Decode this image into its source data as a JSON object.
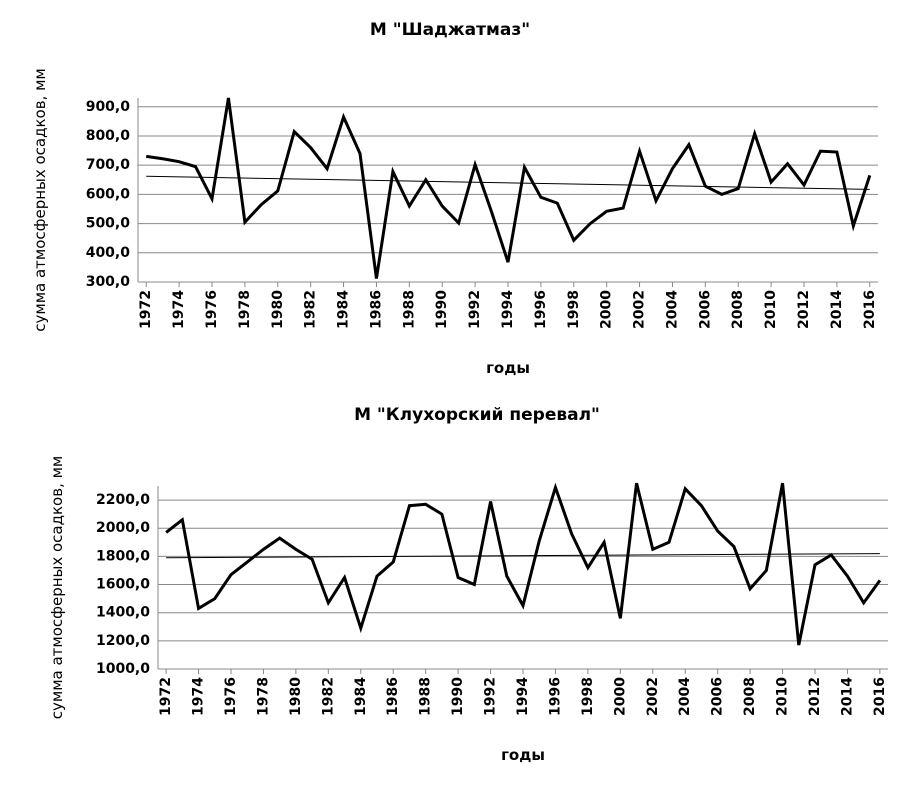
{
  "chart_data": [
    {
      "type": "line",
      "title": "М \"Шаджатмаз\"",
      "x_label": "годы",
      "y_label": "сумма атмосферных осадков, мм",
      "x": [
        1972,
        1973,
        1974,
        1975,
        1976,
        1977,
        1978,
        1979,
        1980,
        1981,
        1982,
        1983,
        1984,
        1985,
        1986,
        1987,
        1988,
        1989,
        1990,
        1991,
        1992,
        1993,
        1994,
        1995,
        1996,
        1997,
        1998,
        1999,
        2000,
        2001,
        2002,
        2003,
        2004,
        2005,
        2006,
        2007,
        2008,
        2009,
        2010,
        2011,
        2012,
        2013,
        2014,
        2015,
        2016
      ],
      "values": [
        730,
        722,
        712,
        695,
        585,
        930,
        505,
        565,
        612,
        815,
        760,
        688,
        865,
        740,
        312,
        678,
        560,
        650,
        560,
        502,
        702,
        540,
        368,
        693,
        590,
        570,
        443,
        500,
        542,
        553,
        748,
        578,
        688,
        770,
        628,
        600,
        620,
        808,
        642,
        705,
        632,
        748,
        745,
        492,
        665
      ],
      "color": "#000000",
      "trend": {
        "start": 662,
        "end": 617
      },
      "xlim": [
        1971.5,
        2016.5
      ],
      "xticks": [
        1972,
        1974,
        1976,
        1978,
        1980,
        1982,
        1984,
        1986,
        1988,
        1990,
        1992,
        1994,
        1996,
        1998,
        2000,
        2002,
        2004,
        2006,
        2008,
        2010,
        2012,
        2014,
        2016
      ],
      "ylim": [
        300,
        930
      ],
      "yticks": [
        {
          "value": 300,
          "label": "300,0"
        },
        {
          "value": 400,
          "label": "400,0"
        },
        {
          "value": 500,
          "label": "500,0"
        },
        {
          "value": 600,
          "label": "600,0"
        },
        {
          "value": 700,
          "label": "700,0"
        },
        {
          "value": 800,
          "label": "800,0"
        },
        {
          "value": 900,
          "label": "900,0"
        }
      ],
      "grid": true
    },
    {
      "type": "line",
      "title": "М \"Клухорский перевал\"",
      "x_label": "годы",
      "y_label": "сумма атмосферных осадков, мм",
      "x": [
        1972,
        1973,
        1974,
        1975,
        1976,
        1977,
        1978,
        1979,
        1980,
        1981,
        1982,
        1983,
        1984,
        1985,
        1986,
        1987,
        1988,
        1989,
        1990,
        1991,
        1992,
        1993,
        1994,
        1995,
        1996,
        1997,
        1998,
        1999,
        2000,
        2001,
        2002,
        2003,
        2004,
        2005,
        2006,
        2007,
        2008,
        2009,
        2010,
        2011,
        2012,
        2013,
        2014,
        2015,
        2016
      ],
      "values": [
        1970,
        2060,
        1430,
        1500,
        1670,
        1760,
        1850,
        1930,
        1850,
        1780,
        1470,
        1650,
        1290,
        1660,
        1760,
        2160,
        2170,
        2100,
        1650,
        1600,
        2190,
        1660,
        1450,
        1910,
        2290,
        1960,
        1720,
        1900,
        1360,
        2320,
        1850,
        1900,
        2280,
        2160,
        1980,
        1870,
        1570,
        1700,
        2320,
        1170,
        1740,
        1810,
        1660,
        1470,
        1630
      ],
      "color": "#000000",
      "trend": {
        "start": 1790,
        "end": 1820
      },
      "xlim": [
        1971.5,
        2016.5
      ],
      "xticks": [
        1972,
        1974,
        1976,
        1978,
        1980,
        1982,
        1984,
        1986,
        1988,
        1990,
        1992,
        1994,
        1996,
        1998,
        2000,
        2002,
        2004,
        2006,
        2008,
        2010,
        2012,
        2014,
        2016
      ],
      "ylim": [
        1000,
        2300
      ],
      "yticks": [
        {
          "value": 1000,
          "label": "1000,0"
        },
        {
          "value": 1200,
          "label": "1200,0"
        },
        {
          "value": 1400,
          "label": "1400,0"
        },
        {
          "value": 1600,
          "label": "1600,0"
        },
        {
          "value": 1800,
          "label": "1800,0"
        },
        {
          "value": 2000,
          "label": "2000,0"
        },
        {
          "value": 2200,
          "label": "2200,0"
        }
      ],
      "grid": true
    }
  ]
}
